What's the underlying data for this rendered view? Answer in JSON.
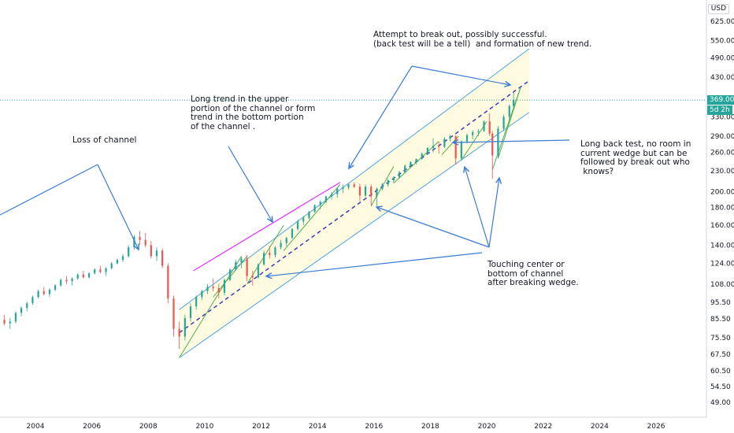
{
  "chart_data": {
    "type": "candlestick",
    "currency": "USD",
    "x_tick_labels": [
      "2004",
      "2006",
      "2008",
      "2010",
      "2012",
      "2014",
      "2016",
      "2018",
      "2020",
      "2022",
      "2024",
      "2026"
    ],
    "y_tick_labels": [
      "625.00",
      "550.00",
      "490.00",
      "430.00",
      "330.00",
      "290.00",
      "260.00",
      "230.00",
      "200.00",
      "180.00",
      "160.00",
      "140.00",
      "124.00",
      "108.00",
      "95.50",
      "85.50",
      "75.50",
      "67.50",
      "60.50",
      "54.50",
      "49.00"
    ],
    "y_scale": "log",
    "ylim": [
      46,
      720
    ],
    "xlim": [
      2002.5,
      2028.2
    ],
    "last_price": "369.00",
    "countdown": "5d 2h",
    "last_price_color": "#26a69a",
    "up_color": "#26a69a",
    "down_color": "#ef5350",
    "channel": {
      "upper": [
        [
          2009.1,
          91
        ],
        [
          2021.5,
          520
        ]
      ],
      "center": [
        [
          2009.1,
          78
        ],
        [
          2021.5,
          420
        ]
      ],
      "lower": [
        [
          2009.1,
          66
        ],
        [
          2021.5,
          340
        ]
      ]
    },
    "series": [
      {
        "values": [
          [
            2002.5,
            82,
            84,
            78,
            80
          ],
          [
            2002.7,
            80,
            86,
            79,
            85
          ],
          [
            2002.9,
            85,
            88,
            82,
            83
          ],
          [
            2003.1,
            83,
            86,
            80,
            84
          ],
          [
            2003.3,
            84,
            90,
            83,
            89
          ],
          [
            2003.5,
            89,
            93,
            87,
            92
          ],
          [
            2003.7,
            92,
            96,
            90,
            95
          ],
          [
            2003.9,
            95,
            100,
            94,
            99
          ],
          [
            2004.1,
            99,
            104,
            98,
            103
          ],
          [
            2004.3,
            103,
            106,
            100,
            101
          ],
          [
            2004.5,
            101,
            105,
            99,
            104
          ],
          [
            2004.7,
            104,
            108,
            103,
            107
          ],
          [
            2004.9,
            107,
            112,
            106,
            111
          ],
          [
            2005.1,
            111,
            114,
            108,
            110
          ],
          [
            2005.3,
            110,
            113,
            107,
            112
          ],
          [
            2005.5,
            112,
            116,
            111,
            115
          ],
          [
            2005.7,
            115,
            118,
            112,
            113
          ],
          [
            2005.9,
            113,
            117,
            112,
            116
          ],
          [
            2006.1,
            116,
            120,
            115,
            119
          ],
          [
            2006.3,
            119,
            122,
            116,
            117
          ],
          [
            2006.5,
            117,
            121,
            114,
            120
          ],
          [
            2006.7,
            120,
            125,
            119,
            124
          ],
          [
            2006.9,
            124,
            128,
            123,
            127
          ],
          [
            2007.1,
            127,
            132,
            125,
            130
          ],
          [
            2007.3,
            130,
            140,
            129,
            138
          ],
          [
            2007.5,
            138,
            150,
            136,
            148
          ],
          [
            2007.7,
            148,
            154,
            140,
            145
          ],
          [
            2007.9,
            145,
            152,
            138,
            140
          ],
          [
            2008.1,
            140,
            144,
            128,
            130
          ],
          [
            2008.3,
            130,
            138,
            126,
            135
          ],
          [
            2008.5,
            135,
            137,
            120,
            122
          ],
          [
            2008.7,
            122,
            124,
            95,
            98
          ],
          [
            2008.9,
            98,
            100,
            76,
            80
          ],
          [
            2009.1,
            80,
            84,
            70,
            76
          ],
          [
            2009.3,
            76,
            88,
            74,
            86
          ],
          [
            2009.5,
            86,
            95,
            84,
            93
          ],
          [
            2009.7,
            93,
            100,
            91,
            99
          ],
          [
            2009.9,
            99,
            104,
            97,
            103
          ],
          [
            2010.1,
            103,
            108,
            101,
            106
          ],
          [
            2010.3,
            106,
            112,
            103,
            105
          ],
          [
            2010.5,
            105,
            108,
            98,
            102
          ],
          [
            2010.7,
            102,
            112,
            100,
            111
          ],
          [
            2010.9,
            111,
            120,
            110,
            119
          ],
          [
            2011.1,
            119,
            127,
            118,
            125
          ],
          [
            2011.3,
            125,
            130,
            120,
            128
          ],
          [
            2011.5,
            128,
            131,
            110,
            114
          ],
          [
            2011.7,
            114,
            118,
            107,
            113
          ],
          [
            2011.9,
            113,
            124,
            112,
            123
          ],
          [
            2012.1,
            123,
            135,
            122,
            133
          ],
          [
            2012.3,
            133,
            139,
            128,
            131
          ],
          [
            2012.5,
            131,
            139,
            129,
            138
          ],
          [
            2012.7,
            138,
            145,
            136,
            142
          ],
          [
            2012.9,
            142,
            148,
            139,
            147
          ],
          [
            2013.1,
            147,
            157,
            146,
            156
          ],
          [
            2013.3,
            156,
            166,
            154,
            164
          ],
          [
            2013.5,
            164,
            170,
            160,
            168
          ],
          [
            2013.7,
            168,
            176,
            166,
            175
          ],
          [
            2013.9,
            175,
            184,
            174,
            183
          ],
          [
            2014.1,
            183,
            189,
            178,
            187
          ],
          [
            2014.3,
            187,
            195,
            185,
            194
          ],
          [
            2014.5,
            194,
            200,
            190,
            197
          ],
          [
            2014.7,
            197,
            206,
            192,
            204
          ],
          [
            2014.9,
            204,
            210,
            198,
            206
          ],
          [
            2015.1,
            206,
            212,
            203,
            210
          ],
          [
            2015.3,
            210,
            213,
            205,
            207
          ],
          [
            2015.5,
            207,
            211,
            188,
            195
          ],
          [
            2015.7,
            195,
            210,
            193,
            207
          ],
          [
            2015.9,
            207,
            210,
            182,
            194
          ],
          [
            2016.1,
            194,
            206,
            182,
            204
          ],
          [
            2016.3,
            204,
            212,
            202,
            210
          ],
          [
            2016.5,
            210,
            218,
            207,
            216
          ],
          [
            2016.7,
            216,
            222,
            212,
            220
          ],
          [
            2016.9,
            220,
            230,
            219,
            228
          ],
          [
            2017.1,
            228,
            240,
            226,
            238
          ],
          [
            2017.3,
            238,
            245,
            236,
            244
          ],
          [
            2017.5,
            244,
            250,
            240,
            249
          ],
          [
            2017.7,
            249,
            260,
            248,
            258
          ],
          [
            2017.9,
            258,
            270,
            256,
            268
          ],
          [
            2018.1,
            268,
            286,
            260,
            272
          ],
          [
            2018.3,
            272,
            280,
            258,
            270
          ],
          [
            2018.5,
            270,
            288,
            268,
            285
          ],
          [
            2018.7,
            285,
            293,
            280,
            290
          ],
          [
            2018.9,
            290,
            292,
            240,
            250
          ],
          [
            2019.1,
            250,
            282,
            246,
            280
          ],
          [
            2019.3,
            280,
            295,
            276,
            292
          ],
          [
            2019.5,
            292,
            302,
            284,
            298
          ],
          [
            2019.7,
            298,
            304,
            290,
            300
          ],
          [
            2019.9,
            300,
            322,
            298,
            320
          ],
          [
            2020.1,
            320,
            338,
            290,
            295
          ],
          [
            2020.2,
            295,
            300,
            218,
            255
          ],
          [
            2020.4,
            255,
            310,
            250,
            305
          ],
          [
            2020.6,
            305,
            335,
            300,
            330
          ],
          [
            2020.8,
            330,
            358,
            322,
            355
          ],
          [
            2020.95,
            355,
            388,
            350,
            369
          ]
        ]
      }
    ]
  },
  "price_axis": {
    "usd_label": "USD"
  },
  "annotations": {
    "loss_of_channel": "Loss of channel",
    "long_trend": "Long trend in the upper\nportion of the channel or form\ntrend in the bottom portion\nof the channel .",
    "breakout": "Attempt to break out, possibly successful.\n(back test will be a tell)  and formation of new trend.",
    "back_test": "Long back test, no room in\ncurrent wedge but can be\nfollowed by break out who\n knows?",
    "touching": "Touching center or\nbottom of channel\nafter breaking wedge."
  }
}
